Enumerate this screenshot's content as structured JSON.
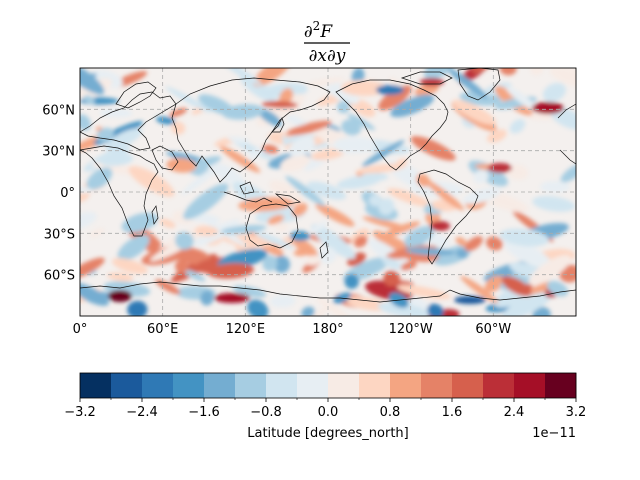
{
  "chart_data": {
    "type": "heatmap",
    "title": {
      "numerator_symbol": "∂",
      "numerator_exponent": "2",
      "numerator_var": "F",
      "denominator": "∂x∂y"
    },
    "projection": "PlateCarree",
    "map": {
      "lon_ticks": [
        {
          "value": 0,
          "label": "0°"
        },
        {
          "value": 60,
          "label": "60°E"
        },
        {
          "value": 120,
          "label": "120°E"
        },
        {
          "value": 180,
          "label": "180°"
        },
        {
          "value": 240,
          "label": "120°W"
        },
        {
          "value": 300,
          "label": "60°W"
        }
      ],
      "lat_ticks": [
        {
          "value": 60,
          "label": "60°N"
        },
        {
          "value": 30,
          "label": "30°N"
        },
        {
          "value": 0,
          "label": "0°"
        },
        {
          "value": -30,
          "label": "30°S"
        },
        {
          "value": -60,
          "label": "60°S"
        }
      ],
      "lon_range": [
        0,
        360
      ],
      "lat_range": [
        -90,
        90
      ],
      "gridlines": "dashed gray",
      "coastlines": true
    },
    "colorbar": {
      "orientation": "horizontal",
      "levels": [
        -3.2,
        -2.8,
        -2.4,
        -2.0,
        -1.6,
        -1.2,
        -0.8,
        -0.4,
        0.0,
        0.4,
        0.8,
        1.2,
        1.6,
        2.0,
        2.4,
        2.8,
        3.2
      ],
      "tick_labels": [
        "−3.2",
        "−2.4",
        "−1.6",
        "−0.8",
        "0.0",
        "0.8",
        "1.6",
        "2.4",
        "3.2"
      ],
      "tick_values": [
        -3.2,
        -2.4,
        -1.6,
        -0.8,
        0.0,
        0.8,
        1.6,
        2.4,
        3.2
      ],
      "label": "Latitude [degrees_north]",
      "scale_label": "1e−11",
      "colormap": "RdBu_r",
      "colors": [
        "#053061",
        "#1b5a9c",
        "#2f79b5",
        "#4393c3",
        "#74add1",
        "#a6cde2",
        "#d1e5f0",
        "#e7eef3",
        "#f7ebe5",
        "#fdd6c2",
        "#f4a582",
        "#e58267",
        "#d6604d",
        "#bb2f37",
        "#a50f27",
        "#67001f"
      ]
    }
  }
}
